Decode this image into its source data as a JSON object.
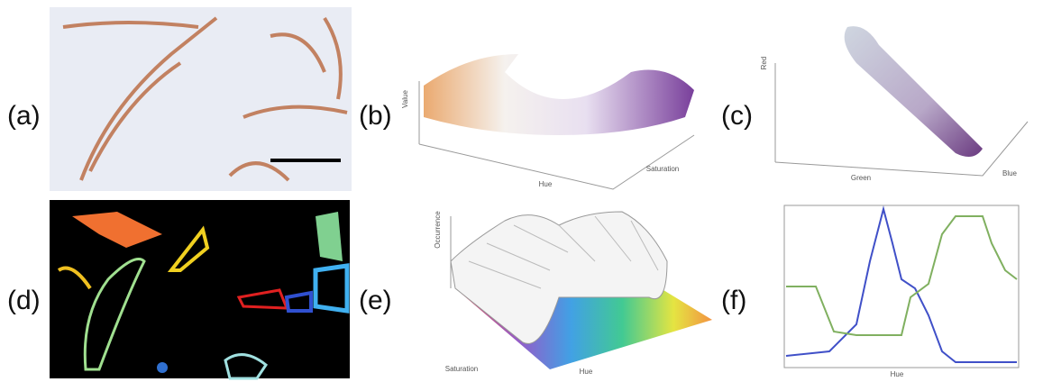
{
  "panels": [
    {
      "label": "(a)"
    },
    {
      "label": "(b)",
      "axis_labels": [
        "Value",
        "Hue",
        "Saturation"
      ]
    },
    {
      "label": "(c)",
      "axis_labels": [
        "Red",
        "Green",
        "Blue"
      ]
    },
    {
      "label": "(d)"
    },
    {
      "label": "(e)",
      "axis_labels": [
        "Occurrence",
        "Saturation",
        "Hue"
      ]
    },
    {
      "label": "(f)",
      "axis_labels": [
        "Hue"
      ]
    }
  ]
}
